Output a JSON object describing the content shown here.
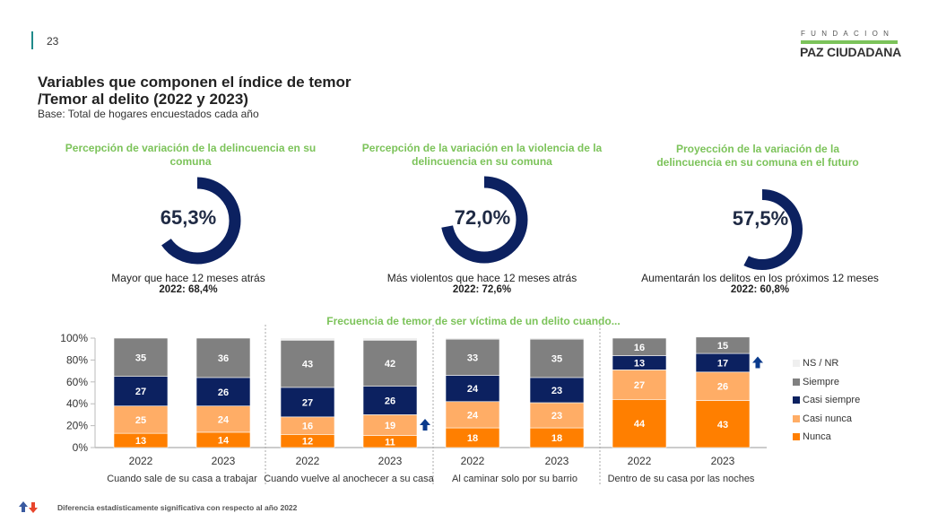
{
  "page_number": "23",
  "logo": {
    "top": "FUNDACION",
    "main": "PAZ CIUDADANA"
  },
  "title_line1": "Variables que componen el índice de temor",
  "title_line2": "/Temor al delito (2022 y 2023)",
  "subtitle": "Base: Total de hogares encuestados cada año",
  "kpis": [
    {
      "title": "Percepción de variación de la delincuencia en su comuna",
      "value": "65,3%",
      "percent": 65.3,
      "desc": "Mayor que hace 12 meses atrás",
      "prev": "2022: 68,4%"
    },
    {
      "title": "Percepción de la variación en la violencia de la delincuencia en su comuna",
      "value": "72,0%",
      "percent": 72.0,
      "desc": "Más violentos que hace 12 meses atrás",
      "prev": "2022: 72,6%"
    },
    {
      "title": "Proyección de la variación de la delincuencia en su comuna en el futuro",
      "value": "57,5%",
      "percent": 57.5,
      "desc": "Aumentarán los delitos en los próximos 12 meses",
      "prev": "2022: 60,8%"
    }
  ],
  "colors": {
    "ring": "#0c2160",
    "nunca": "#ff7f00",
    "casi_nunca": "#ffad66",
    "casi_siempre": "#0c2160",
    "siempre": "#808080",
    "nsnr": "#efefef",
    "arrow_up": "#0a3a8c",
    "arrow_down": "#e8452c",
    "green": "#7cc35a"
  },
  "freq_title": "Frecuencia de temor de ser víctima de un delito cuando...",
  "chart_data": {
    "type": "bar",
    "stacked": true,
    "ylim": [
      0,
      100
    ],
    "yticks": [
      "0%",
      "20%",
      "40%",
      "60%",
      "80%",
      "100%"
    ],
    "groups": [
      "Cuando sale de su casa a trabajar",
      "Cuando vuelve al anochecer a su casa",
      "Al caminar solo por su barrio",
      "Dentro de su casa por las noches"
    ],
    "categories": [
      "2022",
      "2023",
      "2022",
      "2023",
      "2022",
      "2023",
      "2022",
      "2023"
    ],
    "series": [
      {
        "name": "Nunca",
        "values": [
          13,
          14,
          12,
          11,
          18,
          18,
          44,
          43
        ]
      },
      {
        "name": "Casi nunca",
        "values": [
          25,
          24,
          16,
          19,
          24,
          23,
          27,
          26
        ]
      },
      {
        "name": "Casi siempre",
        "values": [
          27,
          26,
          27,
          26,
          24,
          23,
          13,
          17
        ]
      },
      {
        "name": "Siempre",
        "values": [
          35,
          36,
          43,
          42,
          33,
          35,
          16,
          15
        ]
      }
    ],
    "legend": [
      "NS / NR",
      "Siempre",
      "Casi siempre",
      "Casi nunca",
      "Nunca"
    ],
    "legend_placement": "right",
    "significant_up": [
      {
        "bar": 3,
        "series": "Casi nunca"
      },
      {
        "bar": 7,
        "series": "Casi siempre"
      }
    ]
  },
  "footnote": "Diferencia estadísticamente significativa con respecto al año 2022"
}
